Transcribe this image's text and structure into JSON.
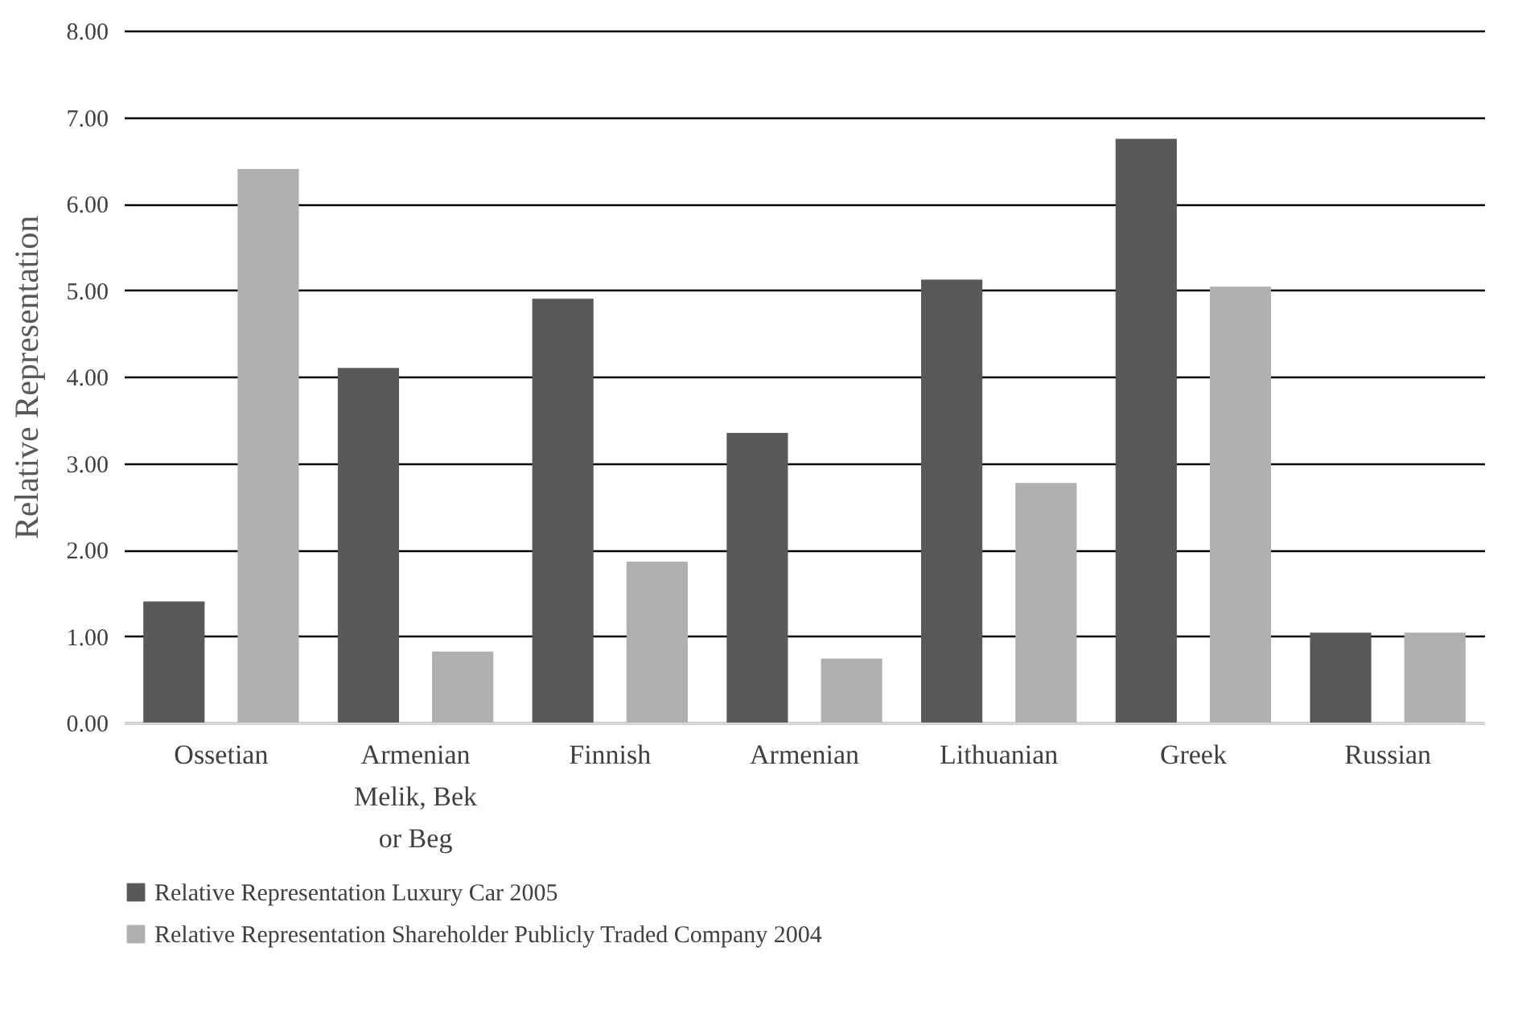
{
  "chart_data": {
    "type": "bar",
    "ylabel": "Relative Representation",
    "categories": [
      "Ossetian",
      "Armenian Melik, Bek or Beg",
      "Finnish",
      "Armenian",
      "Lithuanian",
      "Greek",
      "Russian"
    ],
    "series": [
      {
        "name": "Relative Representation Luxury Car 2005",
        "color": "#595959",
        "values": [
          1.4,
          4.1,
          4.9,
          3.35,
          5.12,
          6.75,
          1.04
        ]
      },
      {
        "name": "Relative Representation Shareholder Publicly Traded Company 2004",
        "color": "#b0b0b0",
        "values": [
          6.4,
          0.82,
          1.86,
          0.74,
          2.77,
          5.04,
          1.04
        ]
      }
    ],
    "ylim": [
      0,
      8
    ],
    "yticks": [
      {
        "value": 0,
        "label": "0.00"
      },
      {
        "value": 1,
        "label": "1.00"
      },
      {
        "value": 2,
        "label": "2.00"
      },
      {
        "value": 3,
        "label": "3.00"
      },
      {
        "value": 4,
        "label": "4.00"
      },
      {
        "value": 5,
        "label": "5.00"
      },
      {
        "value": 6,
        "label": "6.00"
      },
      {
        "value": 7,
        "label": "7.00"
      },
      {
        "value": 8,
        "label": "8.00"
      }
    ],
    "grid": "y",
    "legend": "bottom"
  }
}
